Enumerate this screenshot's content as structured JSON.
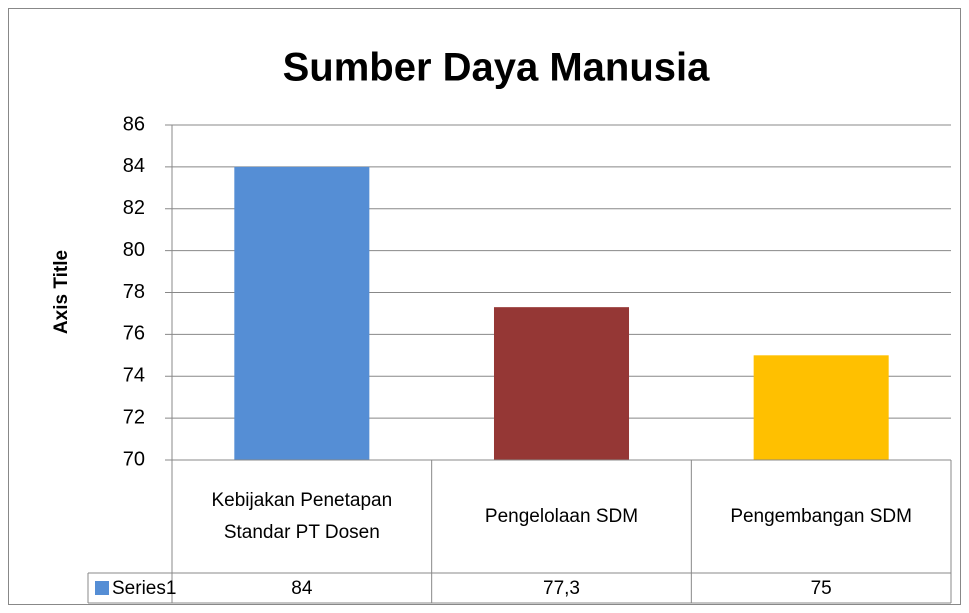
{
  "chart_data": {
    "type": "bar",
    "title": "Sumber Daya Manusia",
    "y_axis_title": "Axis Title",
    "categories": [
      "Kebijakan Penetapan Standar PT Dosen",
      "Pengelolaan SDM",
      "Pengembangan SDM"
    ],
    "series": [
      {
        "name": "Series1",
        "color": "#558ed5",
        "colors": [
          "#558ed5",
          "#953735",
          "#ffc000"
        ],
        "values": [
          84,
          77.3,
          75
        ],
        "value_labels": [
          "84",
          "77,3",
          "75"
        ]
      }
    ],
    "ylim": [
      70,
      86
    ],
    "yticks": [
      70,
      72,
      74,
      76,
      78,
      80,
      82,
      84,
      86
    ],
    "grid": true,
    "data_table": true
  }
}
